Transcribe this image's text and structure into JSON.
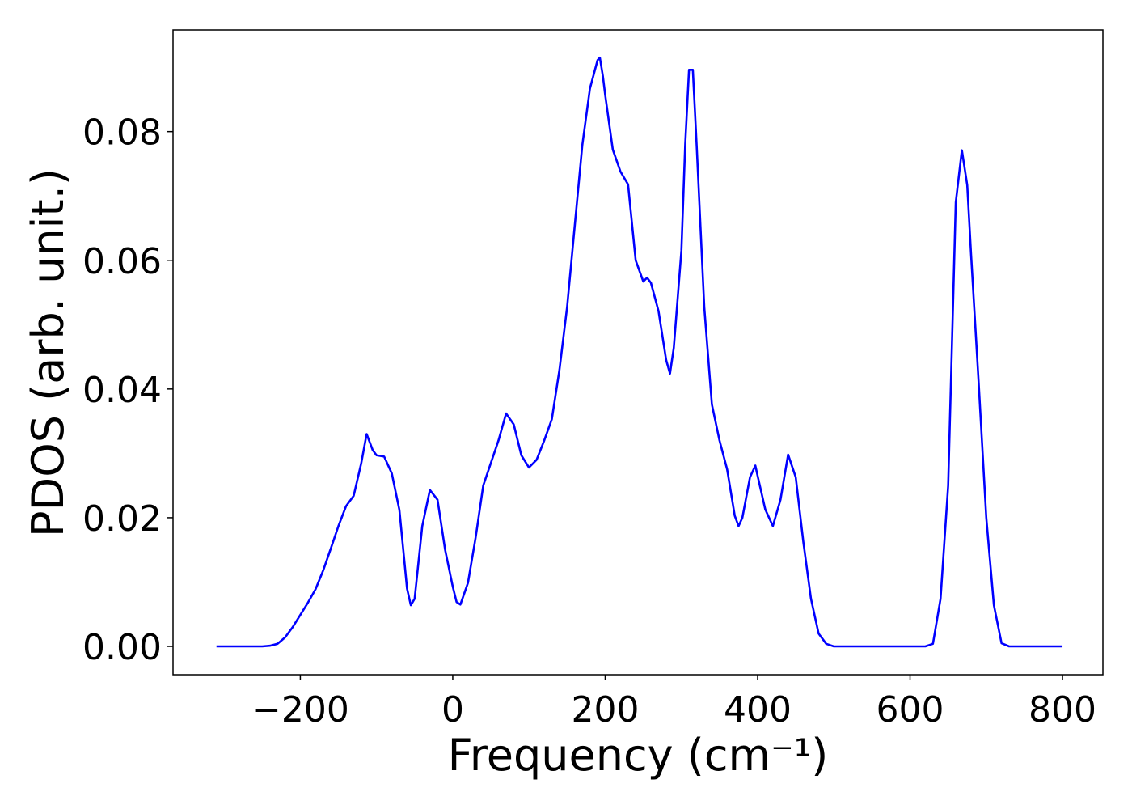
{
  "chart_data": {
    "type": "line",
    "xlabel": "Frequency (cm⁻¹)",
    "ylabel": "PDOS (arb. unit.)",
    "color": "#0000ff",
    "x": [
      -310,
      -300,
      -290,
      -280,
      -270,
      -260,
      -250,
      -240,
      -230,
      -220,
      -210,
      -200,
      -190,
      -180,
      -170,
      -160,
      -150,
      -140,
      -130,
      -120,
      -113,
      -105,
      -100,
      -90,
      -80,
      -70,
      -60,
      -55,
      -50,
      -40,
      -30,
      -20,
      -10,
      0,
      5,
      10,
      20,
      30,
      40,
      50,
      60,
      70,
      80,
      90,
      100,
      110,
      120,
      130,
      140,
      150,
      160,
      170,
      180,
      190,
      193,
      197,
      200,
      210,
      220,
      230,
      240,
      250,
      255,
      260,
      270,
      280,
      285,
      290,
      300,
      305,
      310,
      315,
      320,
      330,
      340,
      350,
      360,
      370,
      375,
      380,
      390,
      397,
      400,
      410,
      420,
      430,
      440,
      450,
      460,
      470,
      480,
      490,
      500,
      520,
      540,
      560,
      580,
      600,
      620,
      630,
      640,
      650,
      660,
      668,
      675,
      680,
      690,
      700,
      710,
      720,
      730,
      750,
      800
    ],
    "values": [
      0,
      0,
      0,
      0,
      0,
      0,
      0,
      0.0001,
      0.0004,
      0.0014,
      0.003,
      0.0049,
      0.0068,
      0.0089,
      0.0118,
      0.0152,
      0.0187,
      0.0218,
      0.0234,
      0.0285,
      0.033,
      0.0305,
      0.0297,
      0.0295,
      0.0269,
      0.0212,
      0.009,
      0.0064,
      0.0074,
      0.0187,
      0.0243,
      0.0228,
      0.015,
      0.0093,
      0.0069,
      0.0065,
      0.0099,
      0.0169,
      0.025,
      0.0285,
      0.032,
      0.0362,
      0.0345,
      0.0297,
      0.0278,
      0.029,
      0.032,
      0.0353,
      0.043,
      0.0527,
      0.0653,
      0.0779,
      0.0867,
      0.0911,
      0.0915,
      0.0886,
      0.0857,
      0.0772,
      0.0738,
      0.0718,
      0.06,
      0.0567,
      0.0573,
      0.0565,
      0.0521,
      0.0445,
      0.0424,
      0.0464,
      0.0615,
      0.078,
      0.0896,
      0.0896,
      0.0779,
      0.0527,
      0.0376,
      0.032,
      0.0275,
      0.0203,
      0.0187,
      0.02,
      0.0263,
      0.0281,
      0.0265,
      0.0213,
      0.0187,
      0.0228,
      0.0298,
      0.0263,
      0.0162,
      0.0074,
      0.002,
      0.0004,
      0,
      0,
      0,
      0,
      0,
      0,
      0,
      0.0004,
      0.0074,
      0.025,
      0.069,
      0.0771,
      0.0717,
      0.061,
      0.041,
      0.02,
      0.0064,
      0.0005,
      0,
      0,
      0
    ],
    "xlim": [
      -367,
      853
    ],
    "ylim": [
      -0.0044,
      0.0958
    ],
    "xticks": [
      {
        "value": -200,
        "label": "−200"
      },
      0,
      200,
      400,
      600,
      800
    ],
    "yticks": [
      {
        "value": 0,
        "label": "0.00"
      },
      {
        "value": 0.02,
        "label": "0.02"
      },
      {
        "value": 0.04,
        "label": "0.04"
      },
      {
        "value": 0.06,
        "label": "0.06"
      },
      {
        "value": 0.08,
        "label": "0.08"
      }
    ]
  }
}
